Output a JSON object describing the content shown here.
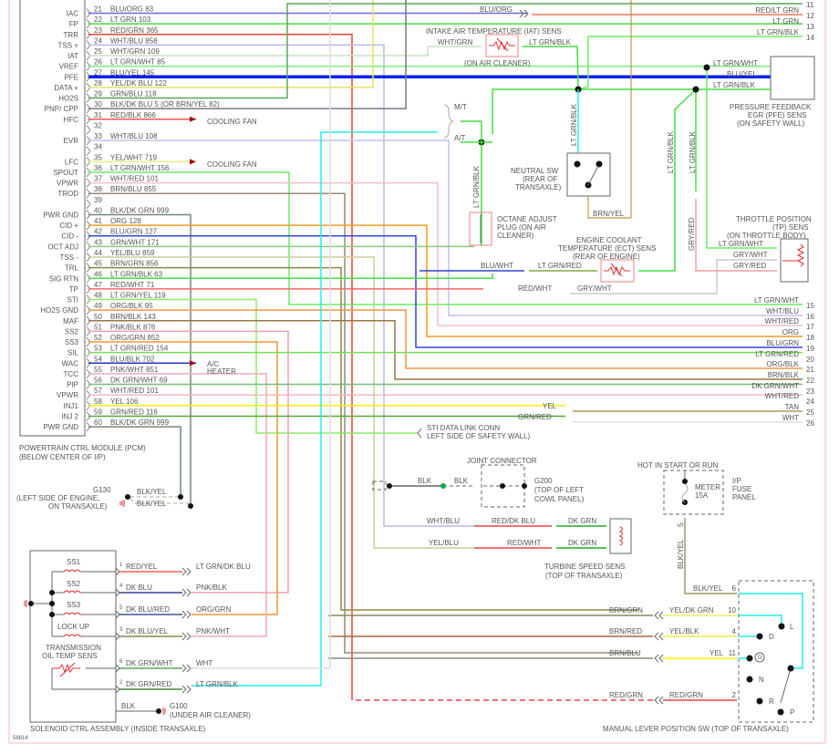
{
  "pcm": {
    "title_line1": "POWERTRAIN CTRL MODULE (PCM)",
    "title_line2": "(BELOW CENTER OF I/P)",
    "pins": [
      {
        "num": "21",
        "func": "IAC",
        "wire": "BLU/ORG 83",
        "color": "#6a6ae0"
      },
      {
        "num": "22",
        "func": "FP",
        "wire": "LT GRN 103",
        "color": "#44dd44"
      },
      {
        "num": "23",
        "func": "TRR",
        "wire": "RED/GRN 365",
        "color": "#ee4433"
      },
      {
        "num": "24",
        "func": "TSS +",
        "wire": "WHT/BLU 858",
        "color": "#b8b8f0"
      },
      {
        "num": "25",
        "func": "IAT",
        "wire": "WHT/GRN 109",
        "color": "#c8e0c0"
      },
      {
        "num": "26",
        "func": "VREF",
        "wire": "LT GRN/WHT 85",
        "color": "#77ee77"
      },
      {
        "num": "27",
        "func": "PFE",
        "wire": "BLU/YEL 145",
        "color": "#0022ee"
      },
      {
        "num": "28",
        "func": "DATA +",
        "wire": "YEL/DK BLU 122",
        "color": "#e8e060"
      },
      {
        "num": "29",
        "func": "HO2S",
        "wire": "GRN/BLU 118",
        "color": "#55aa55"
      },
      {
        "num": "30",
        "func": "PNP/ CPP",
        "wire": "BLK/DK BLU 5 (OR BRN/YEL 82)",
        "color": "#777788"
      },
      {
        "num": "31",
        "func": "HFC",
        "wire": "RED/BLK 866",
        "color": "#ee5555"
      },
      {
        "num": "32",
        "func": "",
        "wire": "",
        "color": ""
      },
      {
        "num": "33",
        "func": "EVR",
        "wire": "WHT/BLU 108",
        "color": "#c0c0f0"
      },
      {
        "num": "34",
        "func": "",
        "wire": "",
        "color": ""
      },
      {
        "num": "35",
        "func": "LFC",
        "wire": "YEL/WHT 719",
        "color": "#eeee88"
      },
      {
        "num": "36",
        "func": "SPOUT",
        "wire": "LT GRN/WHT 156",
        "color": "#66ee66"
      },
      {
        "num": "37",
        "func": "VPWR",
        "wire": "WHT/RED 101",
        "color": "#f0c0c8"
      },
      {
        "num": "38",
        "func": "TROD",
        "wire": "BRN/BLU 855",
        "color": "#998877"
      },
      {
        "num": "39",
        "func": "",
        "wire": "",
        "color": ""
      },
      {
        "num": "40",
        "func": "PWR GND",
        "wire": "BLK/DK GRN 999",
        "color": "#778877"
      },
      {
        "num": "41",
        "func": "CID +",
        "wire": "ORG 128",
        "color": "#ff9922"
      },
      {
        "num": "42",
        "func": "CID -",
        "wire": "BLU/GRN 127",
        "color": "#3344dd"
      },
      {
        "num": "43",
        "func": "OCT ADJ",
        "wire": "GRN/WHT 171",
        "color": "#88cc77"
      },
      {
        "num": "44",
        "func": "TSS -",
        "wire": "YEL/BLU 859",
        "color": "#cccc99"
      },
      {
        "num": "45",
        "func": "TRL",
        "wire": "BRN/GRN 856",
        "color": "#888844"
      },
      {
        "num": "46",
        "func": "SIG RTN",
        "wire": "LT GRN/BLK 63",
        "color": "#44dd44"
      },
      {
        "num": "47",
        "func": "TP",
        "wire": "RED/WHT 71",
        "color": "#ff6666"
      },
      {
        "num": "48",
        "func": "STI",
        "wire": "LT GRN/YEL 119",
        "color": "#88ee66"
      },
      {
        "num": "49",
        "func": "HO2S GND",
        "wire": "ORG/BLK 95",
        "color": "#ee9944"
      },
      {
        "num": "50",
        "func": "MAF",
        "wire": "BRN/BLK 143",
        "color": "#997744"
      },
      {
        "num": "51",
        "func": "SS2",
        "wire": "PNK/BLK 876",
        "color": "#f0a0b0"
      },
      {
        "num": "52",
        "func": "SS3",
        "wire": "ORG/GRN 852",
        "color": "#ee9933"
      },
      {
        "num": "53",
        "func": "SIL",
        "wire": "LT GRN/RED 154",
        "color": "#77dd55"
      },
      {
        "num": "54",
        "func": "WAC",
        "wire": "BLU/BLK 702",
        "color": "#2233bb"
      },
      {
        "num": "55",
        "func": "TCC",
        "wire": "PNK/WHT 851",
        "color": "#f4a8b8"
      },
      {
        "num": "56",
        "func": "PIP",
        "wire": "DK GRN/WHT 69",
        "color": "#77bb77"
      },
      {
        "num": "57",
        "func": "VPWR",
        "wire": "WHT/RED 101",
        "color": "#f0b8c0"
      },
      {
        "num": "58",
        "func": "INJ1",
        "wire": "YEL 106",
        "color": "#ffee00"
      },
      {
        "num": "59",
        "func": "INJ 2",
        "wire": "GRN/RED 116",
        "color": "#55aa33"
      },
      {
        "num": "60",
        "func": "PWR GND",
        "wire": "BLK/DK GRN 999",
        "color": "#778877"
      }
    ]
  },
  "loads": {
    "cooling_fan_1": "COOLING FAN",
    "cooling_fan_2": "COOLING FAN",
    "ac_heater_1": "A/C",
    "ac_heater_2": "HEATER"
  },
  "right_connector": [
    {
      "num": "11",
      "label": "",
      "color": "#6a8ae0"
    },
    {
      "num": "12",
      "label": "RED/LT GRN",
      "color": "#ee7755"
    },
    {
      "num": "13",
      "label": "LT GRN",
      "color": "#44dd44"
    },
    {
      "num": "14",
      "label": "LT GRN/BLK",
      "color": "#66ee66"
    },
    {
      "num": "15",
      "label": "LT GRN/WHT",
      "color": "#77ee77"
    },
    {
      "num": "16",
      "label": "WHT/BLU",
      "color": "#c0c0f0"
    },
    {
      "num": "17",
      "label": "WHT/RED",
      "color": "#f0c0c8"
    },
    {
      "num": "18",
      "label": "ORG",
      "color": "#ff8800"
    },
    {
      "num": "19",
      "label": "BLU/GRN",
      "color": "#4455cc"
    },
    {
      "num": "20",
      "label": "LT GRN/RED",
      "color": "#77dd55"
    },
    {
      "num": "21",
      "label": "ORG/BLK",
      "color": "#ee9944"
    },
    {
      "num": "22",
      "label": "BRN/BLK",
      "color": "#997744"
    },
    {
      "num": "23",
      "label": "DK GRN/WHT",
      "color": "#77bb77"
    },
    {
      "num": "24",
      "label": "WHT/RED",
      "color": "#f0b8c0"
    },
    {
      "num": "25",
      "label": "TAN",
      "color": "#aa9966"
    },
    {
      "num": "26",
      "label": "WHT",
      "color": "#dddddd"
    }
  ],
  "inline_labels": {
    "blu_org": "BLU/ORG",
    "yel": "YEL",
    "grn_red": "GRN/RED"
  },
  "iat": {
    "title": "INTAKE AIR TEMPERATURE (IAT) SENS",
    "wire_in": "WHT/GRN",
    "wire_out": "LT GRN/BLK",
    "location": "(ON AIR CLEANER)"
  },
  "pfe": {
    "wire1": "LT GRN/WHT",
    "wire2": "BLU/YEL",
    "wire3": "LT GRN/BLK",
    "title1": "PRESSURE FEEDBACK",
    "title2": "EGR (PFE) SENS",
    "title3": "(ON SAFETY WALL)"
  },
  "mt_at": {
    "mt": "M/T",
    "at": "A/T"
  },
  "vertical_labels": {
    "lt_grn_blk_1": "LT GRN/BLK",
    "lt_grn_blk_2": "LT GRN/BLK",
    "lt_grn_blk_3": "LT GRN/BLK",
    "lt_grn_blk_4": "LT GRN/BLK",
    "gry_red": "GRY/RED",
    "blk_yel": "BLK/YEL"
  },
  "neutral_sw": {
    "title1": "NEUTRAL SW",
    "title2": "(REAR OF",
    "title3": "TRANSAXLE)",
    "wire": "BRN/YEL"
  },
  "octane": {
    "title1": "OCTANE ADJUST",
    "title2": "PLUG (ON AIR",
    "title3": "CLEANER)"
  },
  "ect": {
    "title1": "ENGINE COOLANT",
    "title2": "TEMPERATURE (ECT) SENS",
    "title3": "(REAR OF ENGINE)",
    "wire_left": "BLU/WHT",
    "wire_mid": "LT GRN/RED"
  },
  "tp": {
    "title1": "THROTTLE POSITION",
    "title2": "(TP) SENS",
    "title3": "(ON THROTTLE BODY)",
    "wire1": "LT GRN/WHT",
    "wire2": "GRY/WHT",
    "wire3": "GRY/RED",
    "red_wht": "RED/WHT",
    "gry_wht": "GRY/WHT"
  },
  "sti": {
    "title1": "STI DATA LINK CONN",
    "title2": "LEFT SIDE OF SAFETY WALL)"
  },
  "g130": {
    "name": "G130",
    "loc1": "(LEFT SIDE OF ENGINE,",
    "loc2": "ON TRANSAXLE)",
    "wire1": "BLK/YEL",
    "wire2": "BLK/YEL"
  },
  "joint": {
    "title": "JOINT CONNECTOR",
    "wire1": "BLK",
    "wire2": "BLK",
    "g200": "G200",
    "loc1": "(TOP OF LEFT",
    "loc2": "COWL PANEL)"
  },
  "turbine": {
    "wire1a": "WHT/BLU",
    "wire1b": "RED/DK BLU",
    "wire1c": "DK GRN",
    "wire2a": "YEL/BLU",
    "wire2b": "RED/WHT",
    "wire2c": "DK GRN",
    "title1": "TURBINE SPEED SENS",
    "title2": "(TOP OF TRANSAXLE)"
  },
  "fuse": {
    "hot": "HOT IN START OR RUN",
    "name1": "METER",
    "name2": "15A",
    "panel1": "I/P",
    "panel2": "FUSE",
    "panel3": "PANEL",
    "pin": "5"
  },
  "mlps": {
    "title": "MANUAL LEVER POSITION SW (TOP OF TRANSAXLE)",
    "rows": [
      {
        "pin": "6",
        "wire": "BLK/YEL",
        "outer": ""
      },
      {
        "pin": "10",
        "wire": "YEL/DK GRN",
        "outer": "BRN/GRN"
      },
      {
        "pin": "4",
        "wire": "YEL/BLK",
        "outer": "BRN/RED"
      },
      {
        "pin": "11",
        "wire": "YEL",
        "outer": "BRN/BLU"
      },
      {
        "pin": "2",
        "wire": "RED/GRN",
        "outer": "RED/GRN"
      }
    ],
    "positions": [
      "L",
      "D",
      "D",
      "N",
      "R",
      "P"
    ]
  },
  "solenoid": {
    "title": "SOLENOID CTRL ASSEMBLY (INSIDE TRANSAXLE)",
    "ss1": "SS1",
    "ss2": "SS2",
    "ss3": "SS3",
    "lockup": "LOCK UP",
    "tot1": "TRANSMISSION",
    "tot2": "OIL TEMP SENS",
    "wires": [
      {
        "pin": "1",
        "inner": "RED/YEL",
        "outer": "LT GRN/DK BLU"
      },
      {
        "pin": "4",
        "inner": "DK BLU",
        "outer": "PNK/BLK"
      },
      {
        "pin": "5",
        "inner": "DK BLU/RED",
        "outer": "ORG/GRN"
      },
      {
        "pin": "3",
        "inner": "DK BLU/YEL",
        "outer": "PNK/WHT"
      },
      {
        "pin": "6",
        "inner": "DK GRN/WHT",
        "outer": "WHT"
      },
      {
        "pin": "2",
        "inner": "DK GRN/RED",
        "outer": "LT GRN/BLK"
      }
    ],
    "blk": "BLK",
    "g100": "G100",
    "g100_loc": "(UNDER AIR CLEANER)"
  },
  "figure_id": "58814"
}
